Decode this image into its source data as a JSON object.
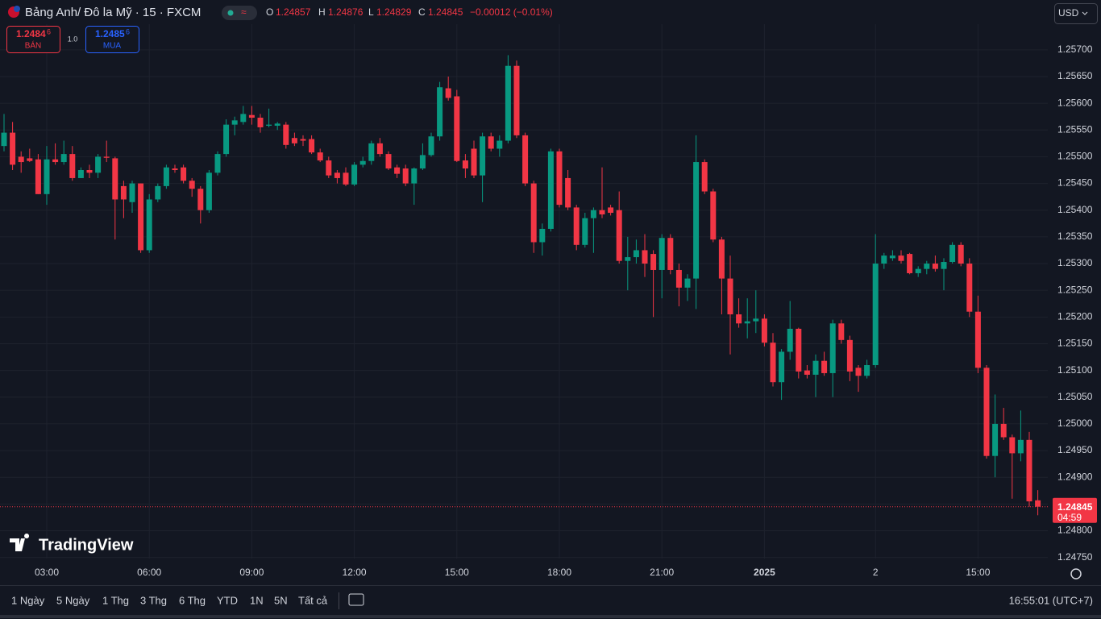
{
  "header": {
    "symbol": "Bảng Anh/ Đô la Mỹ · 15 · FXCM",
    "o": "O",
    "h": "H",
    "l": "L",
    "c": "C",
    "change": "−0.00012 (−0.01%)",
    "currency": "USD"
  },
  "trade": {
    "sell_price": "1.2484",
    "sell_pip": "6",
    "sell_label": "BÁN",
    "spread": "1.0",
    "buy_price": "1.2485",
    "buy_pip": "6",
    "buy_label": "MUA"
  },
  "chart_data": {
    "type": "candlestick",
    "categories": [
      null,
      null,
      null,
      null,
      null,
      "03:00",
      null,
      null,
      null,
      null,
      null,
      null,
      null,
      null,
      null,
      null,
      null,
      "06:00",
      null,
      null,
      null,
      null,
      null,
      null,
      null,
      null,
      null,
      null,
      null,
      "09:00",
      null,
      null,
      null,
      null,
      null,
      null,
      null,
      null,
      null,
      null,
      null,
      "12:00",
      null,
      null,
      null,
      null,
      null,
      null,
      null,
      null,
      null,
      null,
      null,
      "15:00",
      null,
      null,
      null,
      null,
      null,
      null,
      null,
      null,
      null,
      null,
      null,
      "18:00",
      null,
      null,
      null,
      null,
      null,
      null,
      null,
      null,
      null,
      null,
      null,
      "21:00",
      null,
      null,
      null,
      null,
      null,
      null,
      null,
      null,
      null,
      null,
      null,
      "2025",
      null,
      null,
      null,
      null,
      null,
      null,
      null,
      null,
      null,
      null,
      null,
      null,
      "2",
      null,
      null,
      null,
      null,
      null,
      null,
      null,
      null,
      null,
      null,
      null,
      "15:00",
      null,
      null,
      null,
      null,
      null,
      null,
      null
    ],
    "candles": [
      [
        1.2552,
        1.2558,
        1.2551,
        1.25545
      ],
      [
        1.25545,
        1.25565,
        1.25475,
        1.25485
      ],
      [
        1.255,
        1.2551,
        1.2547,
        1.2549
      ],
      [
        1.25497,
        1.25515,
        1.2549,
        1.25492
      ],
      [
        1.25495,
        1.25505,
        1.2543,
        1.2543
      ],
      [
        1.2543,
        1.2552,
        1.2541,
        1.25495
      ],
      [
        1.25495,
        1.25525,
        1.25485,
        1.2549
      ],
      [
        1.2549,
        1.2553,
        1.25485,
        1.25505
      ],
      [
        1.25505,
        1.2552,
        1.25455,
        1.2546
      ],
      [
        1.2546,
        1.2548,
        1.2546,
        1.25475
      ],
      [
        1.25475,
        1.25485,
        1.2546,
        1.2547
      ],
      [
        1.2547,
        1.25505,
        1.2546,
        1.255
      ],
      [
        1.255,
        1.2553,
        1.2549,
        1.25498
      ],
      [
        1.25497,
        1.255,
        1.25345,
        1.2542
      ],
      [
        1.25445,
        1.25455,
        1.25385,
        1.2542
      ],
      [
        1.25415,
        1.25455,
        1.25395,
        1.2545
      ],
      [
        1.2545,
        1.2545,
        1.2532,
        1.25325
      ],
      [
        1.25325,
        1.2543,
        1.2532,
        1.2542
      ],
      [
        1.2542,
        1.2545,
        1.25415,
        1.25445
      ],
      [
        1.25445,
        1.25485,
        1.2544,
        1.2548
      ],
      [
        1.25478,
        1.25485,
        1.2547,
        1.25475
      ],
      [
        1.2548,
        1.25485,
        1.2545,
        1.25455
      ],
      [
        1.25455,
        1.2546,
        1.25425,
        1.2544
      ],
      [
        1.2544,
        1.25445,
        1.25375,
        1.254
      ],
      [
        1.254,
        1.25475,
        1.25395,
        1.2547
      ],
      [
        1.2547,
        1.2551,
        1.25465,
        1.25505
      ],
      [
        1.25505,
        1.2557,
        1.255,
        1.2556
      ],
      [
        1.2556,
        1.25575,
        1.2554,
        1.25568
      ],
      [
        1.25565,
        1.25595,
        1.2556,
        1.2558
      ],
      [
        1.25578,
        1.25595,
        1.2556,
        1.25573
      ],
      [
        1.25573,
        1.2558,
        1.25545,
        1.25555
      ],
      [
        1.25558,
        1.2559,
        1.25555,
        1.2556
      ],
      [
        1.25558,
        1.25565,
        1.2555,
        1.25562
      ],
      [
        1.2556,
        1.25565,
        1.25515,
        1.25522
      ],
      [
        1.25535,
        1.25545,
        1.2552,
        1.25525
      ],
      [
        1.25533,
        1.2554,
        1.2552,
        1.2553
      ],
      [
        1.25533,
        1.2554,
        1.25505,
        1.25508
      ],
      [
        1.25508,
        1.25515,
        1.2549,
        1.25493
      ],
      [
        1.25493,
        1.255,
        1.2546,
        1.25465
      ],
      [
        1.2547,
        1.25475,
        1.2545,
        1.2546
      ],
      [
        1.2547,
        1.2548,
        1.25445,
        1.25448
      ],
      [
        1.25448,
        1.2549,
        1.25445,
        1.25485
      ],
      [
        1.25485,
        1.255,
        1.2548,
        1.25492
      ],
      [
        1.25492,
        1.2553,
        1.25485,
        1.25525
      ],
      [
        1.25525,
        1.25535,
        1.255,
        1.25505
      ],
      [
        1.25505,
        1.2551,
        1.25475,
        1.25478
      ],
      [
        1.2548,
        1.25485,
        1.2546,
        1.25468
      ],
      [
        1.25478,
        1.25485,
        1.25445,
        1.2545
      ],
      [
        1.2545,
        1.2548,
        1.2541,
        1.25478
      ],
      [
        1.25478,
        1.25525,
        1.25475,
        1.25503
      ],
      [
        1.25503,
        1.25545,
        1.255,
        1.25538
      ],
      [
        1.25538,
        1.2564,
        1.2553,
        1.2563
      ],
      [
        1.25628,
        1.2565,
        1.25605,
        1.2561
      ],
      [
        1.25613,
        1.25625,
        1.2549,
        1.25492
      ],
      [
        1.25493,
        1.25505,
        1.2546,
        1.25478
      ],
      [
        1.25515,
        1.2553,
        1.2546,
        1.25465
      ],
      [
        1.25465,
        1.25545,
        1.25415,
        1.25538
      ],
      [
        1.25538,
        1.25545,
        1.2551,
        1.25515
      ],
      [
        1.25515,
        1.2554,
        1.255,
        1.2553
      ],
      [
        1.2553,
        1.2569,
        1.25525,
        1.2567
      ],
      [
        1.2567,
        1.2568,
        1.25535,
        1.2554
      ],
      [
        1.2554,
        1.25545,
        1.25445,
        1.2545
      ],
      [
        1.2545,
        1.25455,
        1.2532,
        1.2534
      ],
      [
        1.2534,
        1.25375,
        1.25315,
        1.25365
      ],
      [
        1.25365,
        1.25515,
        1.2536,
        1.2551
      ],
      [
        1.2551,
        1.25515,
        1.25405,
        1.2541
      ],
      [
        1.2546,
        1.25475,
        1.254,
        1.25405
      ],
      [
        1.25405,
        1.2541,
        1.25325,
        1.25335
      ],
      [
        1.25335,
        1.25395,
        1.2533,
        1.25385
      ],
      [
        1.25385,
        1.25405,
        1.2532,
        1.254
      ],
      [
        1.254,
        1.2548,
        1.25385,
        1.25392
      ],
      [
        1.25405,
        1.2541,
        1.2539,
        1.25395
      ],
      [
        1.254,
        1.25435,
        1.253,
        1.25305
      ],
      [
        1.25305,
        1.2535,
        1.2525,
        1.25312
      ],
      [
        1.25312,
        1.25345,
        1.253,
        1.25325
      ],
      [
        1.25325,
        1.25355,
        1.25275,
        1.253
      ],
      [
        1.25318,
        1.25325,
        1.252,
        1.25288
      ],
      [
        1.25288,
        1.25355,
        1.25235,
        1.25348
      ],
      [
        1.25348,
        1.25355,
        1.2528,
        1.25288
      ],
      [
        1.25288,
        1.253,
        1.2522,
        1.25255
      ],
      [
        1.25255,
        1.2528,
        1.2523,
        1.25272
      ],
      [
        1.25272,
        1.2554,
        1.25215,
        1.2549
      ],
      [
        1.2549,
        1.25495,
        1.2543,
        1.25435
      ],
      [
        1.25435,
        1.2544,
        1.2534,
        1.25345
      ],
      [
        1.25345,
        1.2535,
        1.25205,
        1.25272
      ],
      [
        1.25272,
        1.25315,
        1.2513,
        1.25205
      ],
      [
        1.25205,
        1.25235,
        1.2518,
        1.25188
      ],
      [
        1.25188,
        1.25235,
        1.2516,
        1.25192
      ],
      [
        1.25192,
        1.2525,
        1.2517,
        1.25197
      ],
      [
        1.25197,
        1.25205,
        1.25145,
        1.25152
      ],
      [
        1.25152,
        1.2517,
        1.2507,
        1.25078
      ],
      [
        1.25078,
        1.2514,
        1.25045,
        1.25135
      ],
      [
        1.25135,
        1.2523,
        1.2512,
        1.25178
      ],
      [
        1.25178,
        1.2518,
        1.25085,
        1.25098
      ],
      [
        1.251,
        1.2511,
        1.25085,
        1.25092
      ],
      [
        1.25092,
        1.2513,
        1.2505,
        1.25118
      ],
      [
        1.25118,
        1.25135,
        1.2509,
        1.25095
      ],
      [
        1.25095,
        1.25195,
        1.2505,
        1.25188
      ],
      [
        1.25188,
        1.25195,
        1.2515,
        1.25157
      ],
      [
        1.25157,
        1.25165,
        1.2508,
        1.25098
      ],
      [
        1.25105,
        1.2511,
        1.2506,
        1.2509
      ],
      [
        1.2509,
        1.2512,
        1.25085,
        1.2511
      ],
      [
        1.2511,
        1.25355,
        1.25105,
        1.253
      ],
      [
        1.253,
        1.2532,
        1.2529,
        1.25315
      ],
      [
        1.2531,
        1.25325,
        1.25305,
        1.25315
      ],
      [
        1.25315,
        1.25325,
        1.253,
        1.25305
      ],
      [
        1.25318,
        1.2532,
        1.2528,
        1.25282
      ],
      [
        1.25282,
        1.25295,
        1.25275,
        1.2529
      ],
      [
        1.2529,
        1.25305,
        1.2528,
        1.253
      ],
      [
        1.253,
        1.25315,
        1.25285,
        1.2529
      ],
      [
        1.2529,
        1.2531,
        1.2525,
        1.25303
      ],
      [
        1.25303,
        1.2534,
        1.253,
        1.25335
      ],
      [
        1.25335,
        1.2534,
        1.25295,
        1.253
      ],
      [
        1.253,
        1.2531,
        1.252,
        1.2521
      ],
      [
        1.2521,
        1.2524,
        1.25095,
        1.25105
      ],
      [
        1.25105,
        1.2511,
        1.24935,
        1.2494
      ],
      [
        1.2494,
        1.25055,
        1.249,
        1.25
      ],
      [
        1.25,
        1.2503,
        1.2497,
        1.24975
      ],
      [
        1.24975,
        1.2498,
        1.2486,
        1.24945
      ],
      [
        1.24945,
        1.25025,
        1.2493,
        1.2497
      ],
      [
        1.2497,
        1.24985,
        1.24845,
        1.24855
      ],
      [
        1.24857,
        1.24876,
        1.24829,
        1.24845
      ]
    ],
    "ylim": [
      1.24748,
      1.25748
    ],
    "yticks": [
      {
        "value": 1.2475,
        "label": "1.24750"
      },
      {
        "value": 1.248,
        "label": "1.24800"
      },
      {
        "value": 1.2485,
        "label": "1.24850"
      },
      {
        "value": 1.249,
        "label": "1.24900"
      },
      {
        "value": 1.2495,
        "label": "1.24950"
      },
      {
        "value": 1.25,
        "label": "1.25000"
      },
      {
        "value": 1.2505,
        "label": "1.25050"
      },
      {
        "value": 1.251,
        "label": "1.25100"
      },
      {
        "value": 1.2515,
        "label": "1.25150"
      },
      {
        "value": 1.252,
        "label": "1.25200"
      },
      {
        "value": 1.2525,
        "label": "1.25250"
      },
      {
        "value": 1.253,
        "label": "1.25300"
      },
      {
        "value": 1.2535,
        "label": "1.25350"
      },
      {
        "value": 1.254,
        "label": "1.25400"
      },
      {
        "value": 1.2545,
        "label": "1.25450"
      },
      {
        "value": 1.255,
        "label": "1.25500"
      },
      {
        "value": 1.2555,
        "label": "1.25550"
      },
      {
        "value": 1.256,
        "label": "1.25600"
      },
      {
        "value": 1.2565,
        "label": "1.25650"
      },
      {
        "value": 1.257,
        "label": "1.25700"
      }
    ],
    "up_color": "#089981",
    "down_color": "#f23645",
    "grid": true,
    "countdown": "04:59"
  },
  "watermark": "TradingView",
  "toolbar": {
    "ranges": [
      "1 Ngày",
      "5 Ngày",
      "1 Thg",
      "3 Thg",
      "6 Thg",
      "YTD",
      "1N",
      "5N",
      "Tất cả"
    ],
    "clock": "16:55:01 (UTC+7)"
  }
}
